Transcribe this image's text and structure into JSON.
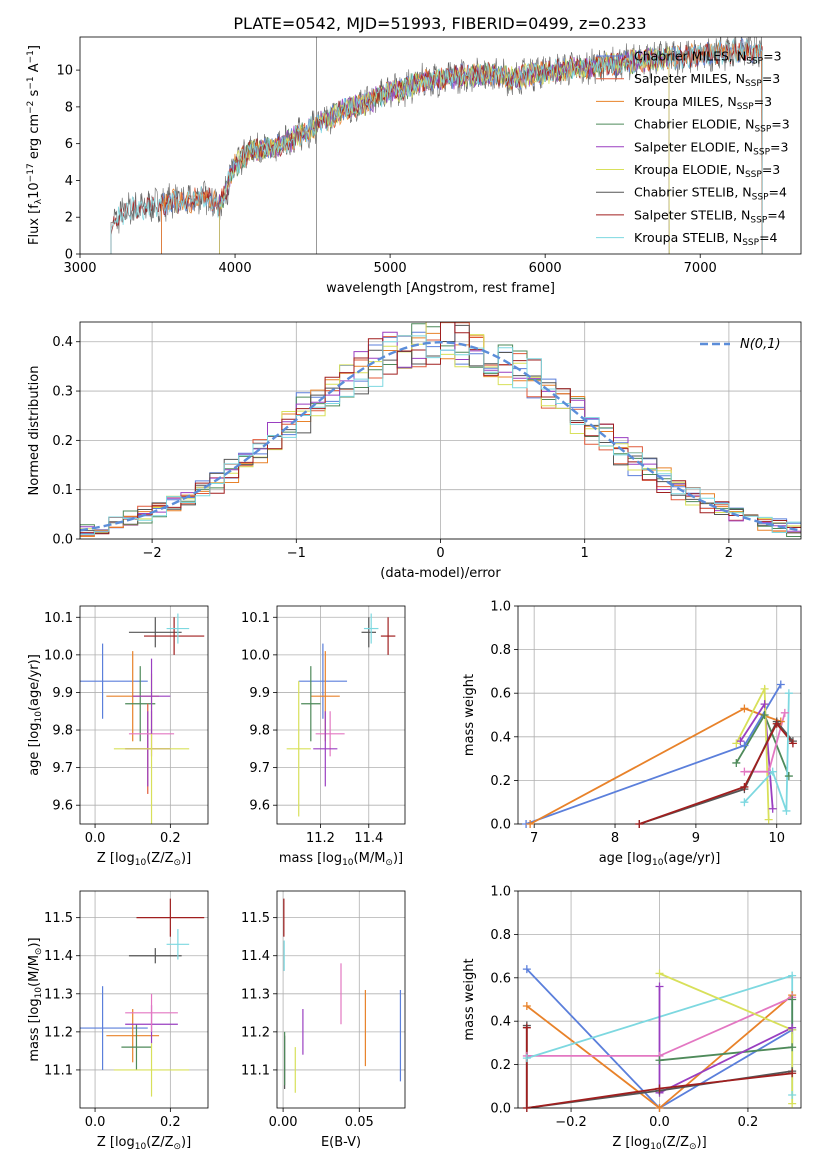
{
  "figure": {
    "title": "PLATE=0542, MJD=51993, FIBERID=0499, z=0.233"
  },
  "chart_data": [
    {
      "id": "spectrum",
      "type": "line",
      "xlabel": "wavelength [Angstrom, rest frame]",
      "ylabel": "Flux [f_λ10^-17 erg cm^-2 s^-1 A^-1]",
      "xlim": [
        3000,
        7650
      ],
      "ylim": [
        0,
        11.8
      ],
      "xticks": [
        3000,
        4000,
        5000,
        6000,
        7000
      ],
      "yticks": [
        0,
        2,
        4,
        6,
        8,
        10
      ],
      "grid": false,
      "legend_position": "top-right",
      "data_flux": {
        "x": [
          3200,
          3300,
          3400,
          3500,
          3600,
          3700,
          3800,
          3900,
          4000,
          4100,
          4200,
          4300,
          4400,
          4500,
          4600,
          4700,
          4800,
          4900,
          5000,
          5100,
          5200,
          5300,
          5400,
          5500,
          5600,
          5700,
          5800,
          5900,
          6000,
          6100,
          6200,
          6300,
          6400,
          6500,
          6600,
          6700,
          6800,
          6900,
          7000,
          7100,
          7200,
          7300,
          7400
        ],
        "y": [
          1.6,
          2.4,
          2.5,
          2.7,
          2.9,
          2.8,
          3.2,
          2.6,
          4.8,
          5.6,
          5.8,
          5.9,
          6.4,
          6.9,
          7.3,
          7.8,
          8.1,
          8.4,
          8.9,
          9.0,
          9.4,
          9.5,
          9.6,
          9.7,
          9.8,
          9.7,
          9.5,
          9.8,
          9.9,
          10.0,
          10.1,
          10.2,
          10.3,
          10.4,
          10.5,
          10.6,
          10.7,
          10.7,
          10.8,
          10.9,
          11.0,
          11.1,
          11.0
        ]
      },
      "series": [
        {
          "name": "Chabrier MILES, N_SSP=3",
          "color": "#5b7fdb",
          "lo": 3525,
          "hi": 7400
        },
        {
          "name": "Salpeter MILES, N_SSP=3",
          "color": "#e05a3a",
          "lo": 3525,
          "hi": 7400
        },
        {
          "name": "Kroupa MILES, N_SSP=3",
          "color": "#e8822a",
          "lo": 3525,
          "hi": 7400
        },
        {
          "name": "Chabrier ELODIE, N_SSP=3",
          "color": "#4e8a5a",
          "lo": 3900,
          "hi": 6800
        },
        {
          "name": "Salpeter ELODIE, N_SSP=3",
          "color": "#9a3fc1",
          "lo": 3900,
          "hi": 6800
        },
        {
          "name": "Kroupa ELODIE, N_SSP=3",
          "color": "#d8e05a",
          "lo": 3900,
          "hi": 6800
        },
        {
          "name": "Chabrier STELIB, N_SSP=4",
          "color": "#555555",
          "lo": 3200,
          "hi": 7400
        },
        {
          "name": "Salpeter STELIB, N_SSP=4",
          "color": "#a01f1f",
          "lo": 3200,
          "hi": 7400
        },
        {
          "name": "Kroupa STELIB, N_SSP=4",
          "color": "#7dd8e0",
          "lo": 3200,
          "hi": 7400
        }
      ],
      "legend": [
        {
          "label": "Chabrier MILES, N",
          "sub": "SSP",
          "suffix": "=3",
          "color": "#5b7fdb"
        },
        {
          "label": "Salpeter MILES, N",
          "sub": "SSP",
          "suffix": "=3",
          "color": "#e05a3a"
        },
        {
          "label": "Kroupa MILES, N",
          "sub": "SSP",
          "suffix": "=3",
          "color": "#e8822a"
        },
        {
          "label": "Chabrier ELODIE, N",
          "sub": "SSP",
          "suffix": "=3",
          "color": "#4e8a5a"
        },
        {
          "label": "Salpeter ELODIE, N",
          "sub": "SSP",
          "suffix": "=3",
          "color": "#9a3fc1"
        },
        {
          "label": "Kroupa ELODIE, N",
          "sub": "SSP",
          "suffix": "=3",
          "color": "#d8e05a"
        },
        {
          "label": "Chabrier STELIB, N",
          "sub": "SSP",
          "suffix": "=4",
          "color": "#555555"
        },
        {
          "label": "Salpeter STELIB, N",
          "sub": "SSP",
          "suffix": "=4",
          "color": "#a01f1f"
        },
        {
          "label": "Kroupa STELIB, N",
          "sub": "SSP",
          "suffix": "=4",
          "color": "#7dd8e0"
        }
      ]
    },
    {
      "id": "residuals",
      "type": "line",
      "xlabel": "(data-model)/error",
      "ylabel": "Normed distribution",
      "xlim": [
        -2.5,
        2.5
      ],
      "ylim": [
        0,
        0.44
      ],
      "xticks": [
        -2,
        -1,
        0,
        1,
        2
      ],
      "yticks": [
        0.0,
        0.1,
        0.2,
        0.3,
        0.4
      ],
      "grid": true,
      "legend_position": "top-right",
      "legend_label": "N(0,1)",
      "reference": {
        "name": "N(0,1)",
        "color": "#5b8dd9",
        "mean": 0,
        "sigma": 1
      },
      "bins": {
        "min": -2.5,
        "max": 2.5,
        "width": 0.1
      },
      "series_colors": [
        "#5b7fdb",
        "#e05a3a",
        "#e8822a",
        "#4e8a5a",
        "#9a3fc1",
        "#d8e05a",
        "#555555",
        "#a01f1f",
        "#7dd8e0"
      ]
    },
    {
      "id": "age_vs_Z",
      "type": "scatter",
      "xlabel": "Z [log10(Z/Z⊙)]",
      "ylabel": "age [log10(age/yr)]",
      "xlim": [
        -0.04,
        0.3
      ],
      "ylim": [
        9.55,
        10.13
      ],
      "xticks": [
        0.0,
        0.2
      ],
      "yticks": [
        9.6,
        9.7,
        9.8,
        9.9,
        10.0,
        10.1
      ],
      "grid": true,
      "points": [
        {
          "x": 0.02,
          "y": 9.93,
          "xerr": 0.12,
          "yerr": 0.1,
          "color": "#5b7fdb"
        },
        {
          "x": 0.1,
          "y": 9.89,
          "xerr": 0.07,
          "yerr": 0.12,
          "color": "#e8822a"
        },
        {
          "x": 0.12,
          "y": 9.87,
          "xerr": 0.04,
          "yerr": 0.1,
          "color": "#4e8a5a"
        },
        {
          "x": 0.14,
          "y": 9.75,
          "xerr": 0.06,
          "yerr": 0.12,
          "color": "#e05a3a"
        },
        {
          "x": 0.14,
          "y": 9.75,
          "xerr": 0.06,
          "yerr": 0.1,
          "color": "#9a3fc1"
        },
        {
          "x": 0.15,
          "y": 9.79,
          "xerr": 0.06,
          "yerr": 0.06,
          "color": "#e377c2"
        },
        {
          "x": 0.15,
          "y": 9.75,
          "xerr": 0.1,
          "yerr": 0.2,
          "color": "#d8e05a"
        },
        {
          "x": 0.15,
          "y": 9.89,
          "xerr": 0.05,
          "yerr": 0.1,
          "color": "#9a3fc1"
        },
        {
          "x": 0.16,
          "y": 10.06,
          "xerr": 0.07,
          "yerr": 0.04,
          "color": "#555555"
        },
        {
          "x": 0.21,
          "y": 10.05,
          "xerr": 0.08,
          "yerr": 0.05,
          "color": "#a01f1f"
        },
        {
          "x": 0.22,
          "y": 10.07,
          "xerr": 0.03,
          "yerr": 0.04,
          "color": "#7dd8e0"
        }
      ]
    },
    {
      "id": "age_vs_mass",
      "type": "scatter",
      "xlabel": "mass [log10(M/M⊙)]",
      "ylabel": "",
      "xlim": [
        11.02,
        11.55
      ],
      "ylim": [
        9.55,
        10.13
      ],
      "xticks": [
        11.2,
        11.4
      ],
      "yticks": [
        9.6,
        9.7,
        9.8,
        9.9,
        10.0,
        10.1
      ],
      "grid": true,
      "points": [
        {
          "x": 11.21,
          "y": 9.93,
          "xerr": 0.1,
          "yerr": 0.1,
          "color": "#5b7fdb"
        },
        {
          "x": 11.22,
          "y": 9.89,
          "xerr": 0.06,
          "yerr": 0.12,
          "color": "#e8822a"
        },
        {
          "x": 11.16,
          "y": 9.87,
          "xerr": 0.04,
          "yerr": 0.1,
          "color": "#4e8a5a"
        },
        {
          "x": 11.24,
          "y": 9.79,
          "xerr": 0.06,
          "yerr": 0.06,
          "color": "#e377c2"
        },
        {
          "x": 11.22,
          "y": 9.75,
          "xerr": 0.05,
          "yerr": 0.1,
          "color": "#9a3fc1"
        },
        {
          "x": 11.11,
          "y": 9.75,
          "xerr": 0.05,
          "yerr": 0.18,
          "color": "#d8e05a"
        },
        {
          "x": 11.4,
          "y": 10.06,
          "xerr": 0.03,
          "yerr": 0.04,
          "color": "#555555"
        },
        {
          "x": 11.48,
          "y": 10.05,
          "xerr": 0.03,
          "yerr": 0.05,
          "color": "#a01f1f"
        },
        {
          "x": 11.41,
          "y": 10.07,
          "xerr": 0.03,
          "yerr": 0.04,
          "color": "#7dd8e0"
        }
      ]
    },
    {
      "id": "massweight_vs_age",
      "type": "line",
      "xlabel": "age [log10(age/yr)]",
      "ylabel": "mass weight",
      "xlim": [
        6.8,
        10.3
      ],
      "ylim": [
        0,
        1.0
      ],
      "xticks": [
        7,
        8,
        9,
        10
      ],
      "yticks": [
        0.0,
        0.2,
        0.4,
        0.6,
        0.8,
        1.0
      ],
      "grid": true,
      "series": [
        {
          "color": "#5b7fdb",
          "x": [
            6.9,
            9.6,
            10.05
          ],
          "y": [
            0.0,
            0.36,
            0.64
          ]
        },
        {
          "color": "#e8822a",
          "x": [
            6.95,
            9.6,
            10.05
          ],
          "y": [
            0.0,
            0.53,
            0.47
          ]
        },
        {
          "color": "#4e8a5a",
          "x": [
            9.5,
            9.85,
            10.15
          ],
          "y": [
            0.28,
            0.5,
            0.22
          ]
        },
        {
          "color": "#9a3fc1",
          "x": [
            9.55,
            9.85,
            9.95
          ],
          "y": [
            0.38,
            0.55,
            0.07
          ]
        },
        {
          "color": "#d8e05a",
          "x": [
            9.5,
            9.85,
            9.9
          ],
          "y": [
            0.37,
            0.62,
            0.02
          ]
        },
        {
          "color": "#e377c2",
          "x": [
            9.6,
            9.9,
            10.1
          ],
          "y": [
            0.24,
            0.24,
            0.51
          ]
        },
        {
          "color": "#555555",
          "x": [
            8.3,
            9.6,
            10.0,
            10.2
          ],
          "y": [
            0.0,
            0.16,
            0.47,
            0.38
          ]
        },
        {
          "color": "#a01f1f",
          "x": [
            8.3,
            9.6,
            10.0,
            10.2
          ],
          "y": [
            0.0,
            0.17,
            0.46,
            0.37
          ]
        },
        {
          "color": "#7dd8e0",
          "x": [
            9.6,
            9.95,
            10.12,
            10.15
          ],
          "y": [
            0.1,
            0.24,
            0.06,
            0.6
          ]
        }
      ]
    },
    {
      "id": "mass_vs_Z",
      "type": "scatter",
      "xlabel": "Z [log10(Z/Z⊙)]",
      "ylabel": "mass [log10(M/M⊙)]",
      "xlim": [
        -0.04,
        0.3
      ],
      "ylim": [
        11.0,
        11.57
      ],
      "xticks": [
        0.0,
        0.2
      ],
      "yticks": [
        11.1,
        11.2,
        11.3,
        11.4,
        11.5
      ],
      "grid": true,
      "points": [
        {
          "x": 0.02,
          "y": 11.21,
          "xerr": 0.12,
          "yerr": 0.11,
          "color": "#5b7fdb"
        },
        {
          "x": 0.1,
          "y": 11.19,
          "xerr": 0.07,
          "yerr": 0.07,
          "color": "#e8822a"
        },
        {
          "x": 0.11,
          "y": 11.16,
          "xerr": 0.04,
          "yerr": 0.06,
          "color": "#4e8a5a"
        },
        {
          "x": 0.15,
          "y": 11.22,
          "xerr": 0.07,
          "yerr": 0.05,
          "color": "#9a3fc1"
        },
        {
          "x": 0.15,
          "y": 11.25,
          "xerr": 0.07,
          "yerr": 0.05,
          "color": "#e377c2"
        },
        {
          "x": 0.15,
          "y": 11.1,
          "xerr": 0.1,
          "yerr": 0.07,
          "color": "#d8e05a"
        },
        {
          "x": 0.16,
          "y": 11.4,
          "xerr": 0.07,
          "yerr": 0.02,
          "color": "#555555"
        },
        {
          "x": 0.2,
          "y": 11.5,
          "xerr": 0.09,
          "yerr": 0.05,
          "color": "#a01f1f"
        },
        {
          "x": 0.22,
          "y": 11.43,
          "xerr": 0.03,
          "yerr": 0.04,
          "color": "#7dd8e0"
        }
      ]
    },
    {
      "id": "mass_vs_ebv",
      "type": "scatter",
      "xlabel": "E(B-V)",
      "ylabel": "",
      "xlim": [
        -0.004,
        0.08
      ],
      "ylim": [
        11.0,
        11.57
      ],
      "xticks": [
        0.0,
        0.05
      ],
      "yticks": [
        11.1,
        11.2,
        11.3,
        11.4,
        11.5
      ],
      "grid": true,
      "points": [
        {
          "x": 0.0005,
          "y": 11.5,
          "xerr": 0.0,
          "yerr": 0.05,
          "color": "#a01f1f"
        },
        {
          "x": 0.0007,
          "y": 11.4,
          "xerr": 0.0,
          "yerr": 0.04,
          "color": "#7dd8e0"
        },
        {
          "x": 0.001,
          "y": 11.12,
          "xerr": 0.0,
          "yerr": 0.07,
          "color": "#555555"
        },
        {
          "x": 0.001,
          "y": 11.13,
          "xerr": 0.0,
          "yerr": 0.07,
          "color": "#4e8a5a"
        },
        {
          "x": 0.008,
          "y": 11.1,
          "xerr": 0.0,
          "yerr": 0.06,
          "color": "#d8e05a"
        },
        {
          "x": 0.013,
          "y": 11.2,
          "xerr": 0.0,
          "yerr": 0.06,
          "color": "#9a3fc1"
        },
        {
          "x": 0.038,
          "y": 11.3,
          "xerr": 0.0,
          "yerr": 0.08,
          "color": "#e377c2"
        },
        {
          "x": 0.054,
          "y": 11.21,
          "xerr": 0.0,
          "yerr": 0.1,
          "color": "#e8822a"
        },
        {
          "x": 0.077,
          "y": 11.19,
          "xerr": 0.0,
          "yerr": 0.12,
          "color": "#5b7fdb"
        }
      ]
    },
    {
      "id": "massweight_vs_Z",
      "type": "line",
      "xlabel": "Z [log10(Z/Z⊙)]",
      "ylabel": "mass weight",
      "xlim": [
        -0.32,
        0.32
      ],
      "ylim": [
        0,
        1.0
      ],
      "xticks": [
        -0.2,
        0.0,
        0.2
      ],
      "yticks": [
        0.0,
        0.2,
        0.4,
        0.6,
        0.8,
        1.0
      ],
      "grid": true,
      "series": [
        {
          "color": "#5b7fdb",
          "x": [
            -0.3,
            0.0,
            0.3
          ],
          "y": [
            0.64,
            0.0,
            0.36
          ]
        },
        {
          "color": "#e8822a",
          "x": [
            -0.3,
            0.0,
            0.3
          ],
          "y": [
            0.47,
            0.0,
            0.52
          ]
        },
        {
          "color": "#e377c2",
          "x": [
            -0.3,
            0.0,
            0.3
          ],
          "y": [
            0.24,
            0.24,
            0.51
          ]
        },
        {
          "color": "#7dd8e0",
          "x": [
            -0.3,
            0.3,
            0.3
          ],
          "y": [
            0.23,
            0.61,
            0.06
          ]
        },
        {
          "color": "#4e8a5a",
          "x": [
            0.0,
            0.3,
            0.3
          ],
          "y": [
            0.22,
            0.28,
            0.5
          ]
        },
        {
          "color": "#d8e05a",
          "x": [
            0.0,
            0.3,
            0.3
          ],
          "y": [
            0.62,
            0.36,
            0.02
          ]
        },
        {
          "color": "#9a3fc1",
          "x": [
            0.0,
            0.0,
            0.3
          ],
          "y": [
            0.56,
            0.07,
            0.37
          ]
        },
        {
          "color": "#555555",
          "x": [
            -0.3,
            -0.3,
            0.0,
            0.3
          ],
          "y": [
            0.38,
            0.0,
            0.08,
            0.17
          ]
        },
        {
          "color": "#a01f1f",
          "x": [
            -0.3,
            -0.3,
            0.0,
            0.3
          ],
          "y": [
            0.37,
            0.0,
            0.09,
            0.16
          ]
        }
      ]
    }
  ]
}
